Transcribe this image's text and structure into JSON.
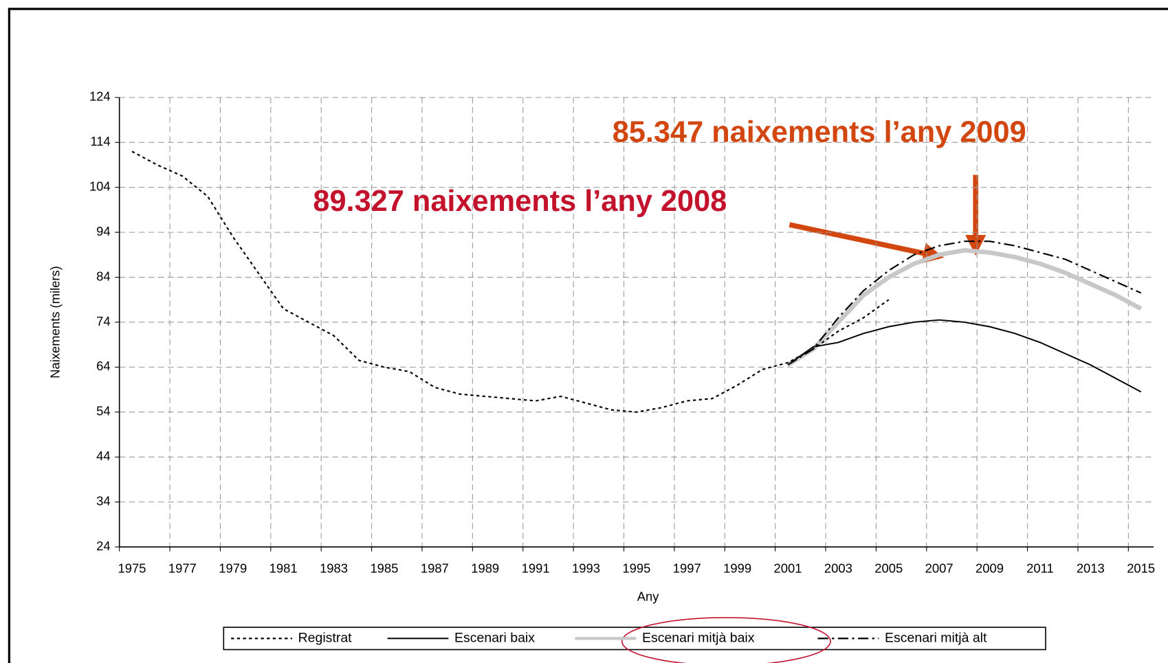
{
  "chart_data": {
    "type": "line",
    "title": null,
    "x_label": "Any",
    "y_label": "Naixements (milers)",
    "categories": [
      "1975",
      null,
      "1977",
      null,
      "1979",
      null,
      "1981",
      null,
      "1983",
      null,
      "1985",
      null,
      "1987",
      null,
      "1989",
      null,
      "1991",
      null,
      "1993",
      null,
      "1995",
      null,
      "1997",
      null,
      "1999",
      null,
      "2001",
      null,
      "2003",
      null,
      "2005",
      null,
      "2007",
      null,
      "2009",
      null,
      "2011",
      null,
      "2013",
      null,
      "2015"
    ],
    "ylim": [
      24,
      124
    ],
    "yticks": [
      24,
      34,
      44,
      54,
      64,
      74,
      84,
      94,
      104,
      114,
      124
    ],
    "grid": true,
    "legend": "bottom",
    "series": [
      {
        "name": "Registrat",
        "color": "#000000",
        "style": "dotted",
        "values": [
          112,
          109,
          106.5,
          102,
          93,
          85,
          77,
          74,
          71,
          65.5,
          64,
          63,
          59.5,
          58,
          57.5,
          57,
          56.5,
          57.5,
          56,
          54.5,
          54,
          55,
          56.5,
          57,
          60,
          63.5,
          65,
          68,
          72,
          75,
          79,
          null,
          null,
          null,
          null,
          null,
          null,
          null,
          null,
          null,
          null
        ]
      },
      {
        "name": "Escenari baix",
        "color": "#000000",
        "style": "solid",
        "values": [
          null,
          null,
          null,
          null,
          null,
          null,
          null,
          null,
          null,
          null,
          null,
          null,
          null,
          null,
          null,
          null,
          null,
          null,
          null,
          null,
          null,
          null,
          null,
          null,
          null,
          null,
          64.5,
          68.5,
          69.5,
          71.5,
          73,
          74,
          74.5,
          74,
          73,
          71.5,
          69.5,
          67,
          64.5,
          61.5,
          58.5
        ]
      },
      {
        "name": "Escenari mitjà baix",
        "color": "#c8c8c8",
        "style": "thick",
        "values": [
          null,
          null,
          null,
          null,
          null,
          null,
          null,
          null,
          null,
          null,
          null,
          null,
          null,
          null,
          null,
          null,
          null,
          null,
          null,
          null,
          null,
          null,
          null,
          null,
          null,
          null,
          64.5,
          68,
          74,
          80,
          84,
          87,
          89,
          90,
          89.5,
          88.5,
          87,
          85,
          82.5,
          80,
          77
        ]
      },
      {
        "name": "Escenari mitjà alt",
        "color": "#000000",
        "style": "dashdot",
        "values": [
          null,
          null,
          null,
          null,
          null,
          null,
          null,
          null,
          null,
          null,
          null,
          null,
          null,
          null,
          null,
          null,
          null,
          null,
          null,
          null,
          null,
          null,
          null,
          null,
          null,
          null,
          64.5,
          68,
          75,
          81,
          85.5,
          89,
          91,
          92,
          92,
          91,
          89.5,
          88,
          85.5,
          83,
          80.5
        ]
      }
    ],
    "annotations": [
      {
        "text": "85.347 naixements l’any 2009",
        "color": "#d2470f"
      },
      {
        "text": "89.327 naixements l’any 2008",
        "color": "#c3122c"
      }
    ]
  }
}
